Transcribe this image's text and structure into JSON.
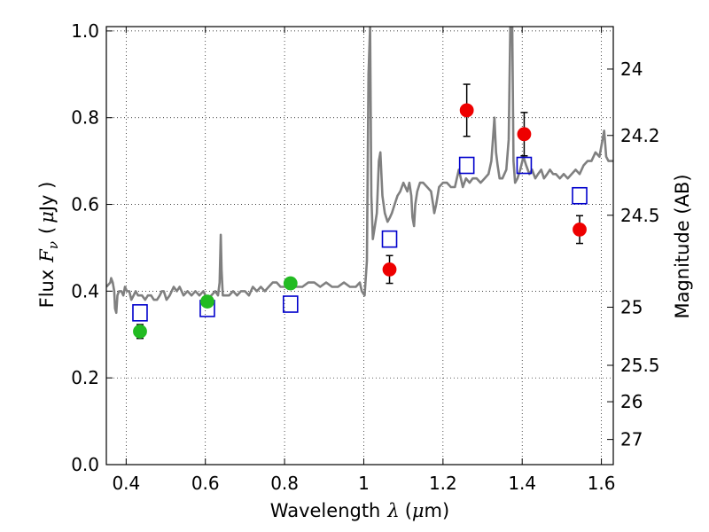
{
  "chart_data": {
    "type": "scatter",
    "xlabel_prefix": "Wavelength",
    "xlabel_symbol": "λ",
    "xlabel_unit_open": "(",
    "xlabel_unit_mu": "μ",
    "xlabel_unit_rest": "m)",
    "ylabel_prefix": "Flux",
    "ylabel_symbol": "F",
    "ylabel_sub": "ν",
    "ylabel_unit_open": "(",
    "ylabel_unit_mu": "μ",
    "ylabel_unit_rest": "Jy )",
    "y2label": "Magnitude (AB)",
    "xlim": [
      0.35,
      1.63
    ],
    "ylim": [
      0.0,
      1.01
    ],
    "grid": true,
    "x_ticks": [
      {
        "value": 0.4,
        "label": "0.4"
      },
      {
        "value": 0.6,
        "label": "0.6"
      },
      {
        "value": 0.8,
        "label": "0.8"
      },
      {
        "value": 1.0,
        "label": "1"
      },
      {
        "value": 1.2,
        "label": "1.2"
      },
      {
        "value": 1.4,
        "label": "1.4"
      },
      {
        "value": 1.6,
        "label": "1.6"
      }
    ],
    "y_ticks": [
      {
        "value": 0.0,
        "label": "0.0"
      },
      {
        "value": 0.2,
        "label": "0.2"
      },
      {
        "value": 0.4,
        "label": "0.4"
      },
      {
        "value": 0.6,
        "label": "0.6"
      },
      {
        "value": 0.8,
        "label": "0.8"
      },
      {
        "value": 1.0,
        "label": "1.0"
      }
    ],
    "magnitude_ticks": [
      {
        "label": "24",
        "flux": 0.912
      },
      {
        "label": "24.2",
        "flux": 0.759
      },
      {
        "label": "24.5",
        "flux": 0.575
      },
      {
        "label": "25",
        "flux": 0.363
      },
      {
        "label": "25.5",
        "flux": 0.229
      },
      {
        "label": "26",
        "flux": 0.145
      },
      {
        "label": "27",
        "flux": 0.058
      }
    ],
    "series": [
      {
        "name": "spectrum",
        "kind": "line",
        "color": "#808080",
        "points": [
          [
            0.35,
            0.41
          ],
          [
            0.36,
            0.42
          ],
          [
            0.362,
            0.43
          ],
          [
            0.366,
            0.42
          ],
          [
            0.37,
            0.4
          ],
          [
            0.372,
            0.36
          ],
          [
            0.375,
            0.35
          ],
          [
            0.378,
            0.39
          ],
          [
            0.382,
            0.4
          ],
          [
            0.388,
            0.4
          ],
          [
            0.393,
            0.39
          ],
          [
            0.397,
            0.41
          ],
          [
            0.402,
            0.4
          ],
          [
            0.408,
            0.4
          ],
          [
            0.413,
            0.38
          ],
          [
            0.419,
            0.39
          ],
          [
            0.424,
            0.4
          ],
          [
            0.43,
            0.39
          ],
          [
            0.44,
            0.39
          ],
          [
            0.448,
            0.38
          ],
          [
            0.455,
            0.39
          ],
          [
            0.463,
            0.39
          ],
          [
            0.47,
            0.38
          ],
          [
            0.478,
            0.38
          ],
          [
            0.485,
            0.39
          ],
          [
            0.49,
            0.4
          ],
          [
            0.495,
            0.4
          ],
          [
            0.502,
            0.38
          ],
          [
            0.51,
            0.39
          ],
          [
            0.52,
            0.41
          ],
          [
            0.528,
            0.4
          ],
          [
            0.535,
            0.41
          ],
          [
            0.545,
            0.39
          ],
          [
            0.555,
            0.4
          ],
          [
            0.565,
            0.39
          ],
          [
            0.575,
            0.4
          ],
          [
            0.585,
            0.39
          ],
          [
            0.595,
            0.4
          ],
          [
            0.605,
            0.38
          ],
          [
            0.615,
            0.39
          ],
          [
            0.625,
            0.4
          ],
          [
            0.632,
            0.39
          ],
          [
            0.636,
            0.42
          ],
          [
            0.639,
            0.53
          ],
          [
            0.641,
            0.45
          ],
          [
            0.644,
            0.39
          ],
          [
            0.65,
            0.39
          ],
          [
            0.66,
            0.39
          ],
          [
            0.67,
            0.4
          ],
          [
            0.68,
            0.39
          ],
          [
            0.69,
            0.4
          ],
          [
            0.7,
            0.4
          ],
          [
            0.71,
            0.39
          ],
          [
            0.72,
            0.41
          ],
          [
            0.73,
            0.4
          ],
          [
            0.74,
            0.41
          ],
          [
            0.75,
            0.4
          ],
          [
            0.76,
            0.41
          ],
          [
            0.77,
            0.42
          ],
          [
            0.78,
            0.42
          ],
          [
            0.79,
            0.41
          ],
          [
            0.8,
            0.41
          ],
          [
            0.81,
            0.42
          ],
          [
            0.82,
            0.41
          ],
          [
            0.83,
            0.41
          ],
          [
            0.845,
            0.41
          ],
          [
            0.86,
            0.42
          ],
          [
            0.875,
            0.42
          ],
          [
            0.89,
            0.41
          ],
          [
            0.905,
            0.42
          ],
          [
            0.92,
            0.41
          ],
          [
            0.935,
            0.41
          ],
          [
            0.95,
            0.42
          ],
          [
            0.965,
            0.41
          ],
          [
            0.98,
            0.41
          ],
          [
            0.99,
            0.42
          ],
          [
            0.995,
            0.4
          ],
          [
            1.002,
            0.39
          ],
          [
            1.008,
            0.47
          ],
          [
            1.012,
            0.9
          ],
          [
            1.016,
            1.01
          ],
          [
            1.019,
            0.62
          ],
          [
            1.023,
            0.52
          ],
          [
            1.028,
            0.55
          ],
          [
            1.033,
            0.58
          ],
          [
            1.038,
            0.7
          ],
          [
            1.042,
            0.72
          ],
          [
            1.047,
            0.62
          ],
          [
            1.053,
            0.58
          ],
          [
            1.06,
            0.56
          ],
          [
            1.066,
            0.57
          ],
          [
            1.071,
            0.58
          ],
          [
            1.078,
            0.6
          ],
          [
            1.085,
            0.62
          ],
          [
            1.092,
            0.63
          ],
          [
            1.1,
            0.65
          ],
          [
            1.105,
            0.64
          ],
          [
            1.11,
            0.63
          ],
          [
            1.115,
            0.65
          ],
          [
            1.12,
            0.62
          ],
          [
            1.123,
            0.57
          ],
          [
            1.127,
            0.55
          ],
          [
            1.13,
            0.6
          ],
          [
            1.135,
            0.63
          ],
          [
            1.142,
            0.65
          ],
          [
            1.15,
            0.65
          ],
          [
            1.16,
            0.64
          ],
          [
            1.17,
            0.63
          ],
          [
            1.175,
            0.6
          ],
          [
            1.178,
            0.58
          ],
          [
            1.183,
            0.6
          ],
          [
            1.19,
            0.64
          ],
          [
            1.2,
            0.65
          ],
          [
            1.21,
            0.65
          ],
          [
            1.22,
            0.64
          ],
          [
            1.23,
            0.64
          ],
          [
            1.24,
            0.68
          ],
          [
            1.245,
            0.66
          ],
          [
            1.25,
            0.64
          ],
          [
            1.258,
            0.66
          ],
          [
            1.267,
            0.65
          ],
          [
            1.275,
            0.66
          ],
          [
            1.285,
            0.66
          ],
          [
            1.295,
            0.65
          ],
          [
            1.305,
            0.66
          ],
          [
            1.315,
            0.67
          ],
          [
            1.322,
            0.7
          ],
          [
            1.326,
            0.75
          ],
          [
            1.33,
            0.8
          ],
          [
            1.334,
            0.72
          ],
          [
            1.338,
            0.69
          ],
          [
            1.343,
            0.66
          ],
          [
            1.35,
            0.66
          ],
          [
            1.36,
            0.68
          ],
          [
            1.366,
            0.75
          ],
          [
            1.37,
            1.01
          ],
          [
            1.375,
            1.01
          ],
          [
            1.378,
            0.7
          ],
          [
            1.382,
            0.65
          ],
          [
            1.388,
            0.66
          ],
          [
            1.395,
            0.68
          ],
          [
            1.403,
            0.71
          ],
          [
            1.41,
            0.69
          ],
          [
            1.418,
            0.67
          ],
          [
            1.425,
            0.68
          ],
          [
            1.433,
            0.66
          ],
          [
            1.44,
            0.67
          ],
          [
            1.448,
            0.68
          ],
          [
            1.455,
            0.66
          ],
          [
            1.463,
            0.67
          ],
          [
            1.47,
            0.68
          ],
          [
            1.478,
            0.67
          ],
          [
            1.485,
            0.67
          ],
          [
            1.495,
            0.66
          ],
          [
            1.505,
            0.67
          ],
          [
            1.515,
            0.66
          ],
          [
            1.525,
            0.67
          ],
          [
            1.535,
            0.68
          ],
          [
            1.545,
            0.67
          ],
          [
            1.555,
            0.69
          ],
          [
            1.565,
            0.7
          ],
          [
            1.575,
            0.7
          ],
          [
            1.585,
            0.72
          ],
          [
            1.595,
            0.71
          ],
          [
            1.603,
            0.75
          ],
          [
            1.607,
            0.77
          ],
          [
            1.612,
            0.71
          ],
          [
            1.618,
            0.7
          ],
          [
            1.63,
            0.7
          ]
        ]
      },
      {
        "name": "model-photometry",
        "kind": "open-square",
        "color": "#0000cc",
        "points": [
          [
            0.435,
            0.35
          ],
          [
            0.605,
            0.36
          ],
          [
            0.815,
            0.37
          ],
          [
            1.065,
            0.52
          ],
          [
            1.26,
            0.69
          ],
          [
            1.405,
            0.69
          ],
          [
            1.545,
            0.62
          ]
        ]
      },
      {
        "name": "optical-photometry",
        "kind": "filled-circle",
        "color": "#22bb22",
        "points": [
          {
            "x": 0.435,
            "y": 0.307,
            "err": 0.016
          },
          {
            "x": 0.605,
            "y": 0.376,
            "err": 0.012
          },
          {
            "x": 0.815,
            "y": 0.418,
            "err": 0.012
          }
        ]
      },
      {
        "name": "infrared-photometry",
        "kind": "filled-circle",
        "color": "#ee0000",
        "points": [
          {
            "x": 1.065,
            "y": 0.45,
            "err": 0.032
          },
          {
            "x": 1.26,
            "y": 0.817,
            "err": 0.06
          },
          {
            "x": 1.405,
            "y": 0.762,
            "err": 0.05
          },
          {
            "x": 1.545,
            "y": 0.542,
            "err": 0.032
          }
        ]
      }
    ]
  }
}
